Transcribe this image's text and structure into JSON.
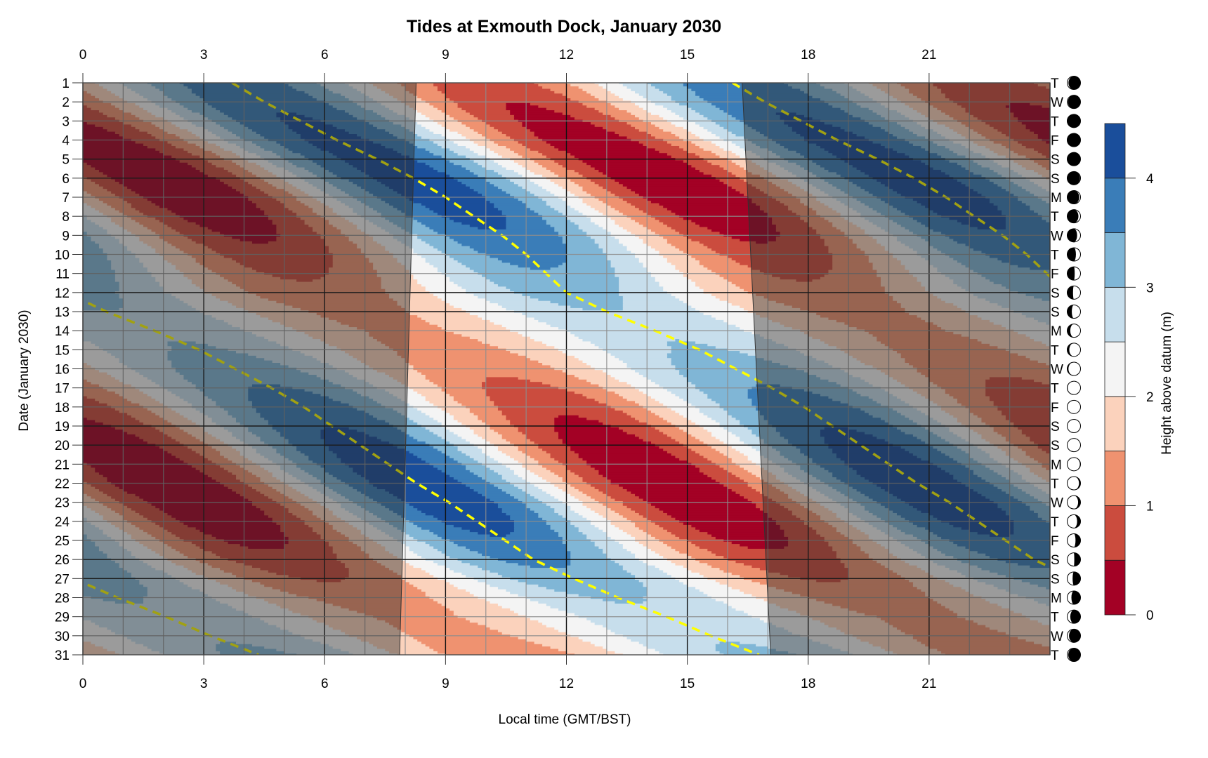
{
  "chart_data": {
    "type": "heatmap",
    "subtype": "filled-contour",
    "title": "Tides at Exmouth Dock, January 2030",
    "xlabel": "Local time (GMT/BST)",
    "ylabel": "Date (January 2030)",
    "x_range": [
      0,
      24
    ],
    "x_ticks": [
      0,
      3,
      6,
      9,
      12,
      15,
      18,
      21
    ],
    "y_range": [
      1,
      31
    ],
    "grid": true,
    "weekend_days": [
      5,
      6,
      12,
      13,
      19,
      20,
      26,
      27
    ],
    "tidal_period_h": 12.42,
    "colorbar": {
      "label": "Height above datum (m)",
      "levels": [
        0,
        0.5,
        1,
        1.5,
        2,
        2.5,
        3,
        3.5,
        4,
        4.5
      ],
      "ticks": [
        0,
        1,
        2,
        3,
        4
      ],
      "colors": [
        "#a30125",
        "#cb4c3e",
        "#ef9270",
        "#fbd2bc",
        "#f4f4f4",
        "#c7deec",
        "#80b6d6",
        "#3a7db8",
        "#1a4e9b"
      ],
      "placement": "right"
    },
    "daylight": {
      "days": [
        1,
        31
      ],
      "sunrise_h": [
        8.27,
        7.86
      ],
      "sunset_h": [
        16.36,
        17.07
      ],
      "night_shade": "rgba(40,40,40,0.44)"
    },
    "high_water_line_color": "#ffff00",
    "days": [
      {
        "day": 1,
        "weekday": "T",
        "moon_phase": 0.9,
        "high_water_time_h": 3.7,
        "high_water_m": 3.8,
        "low_water_m": 0.7
      },
      {
        "day": 2,
        "weekday": "W",
        "moon_phase": 0.93,
        "high_water_time_h": 4.5,
        "high_water_m": 3.95,
        "low_water_m": 0.5
      },
      {
        "day": 3,
        "weekday": "T",
        "moon_phase": 0.96,
        "high_water_time_h": 5.4,
        "high_water_m": 4.05,
        "low_water_m": 0.35
      },
      {
        "day": 4,
        "weekday": "F",
        "moon_phase": 0.0,
        "high_water_time_h": 6.3,
        "high_water_m": 4.15,
        "low_water_m": 0.2
      },
      {
        "day": 5,
        "weekday": "S",
        "moon_phase": 0.03,
        "high_water_time_h": 7.3,
        "high_water_m": 4.22,
        "low_water_m": 0.12
      },
      {
        "day": 6,
        "weekday": "S",
        "moon_phase": 0.06,
        "high_water_time_h": 8.2,
        "high_water_m": 4.27,
        "low_water_m": 0.08
      },
      {
        "day": 7,
        "weekday": "M",
        "moon_phase": 0.1,
        "high_water_time_h": 9.0,
        "high_water_m": 4.25,
        "low_water_m": 0.08
      },
      {
        "day": 8,
        "weekday": "T",
        "moon_phase": 0.13,
        "high_water_time_h": 9.7,
        "high_water_m": 4.15,
        "low_water_m": 0.2
      },
      {
        "day": 9,
        "weekday": "W",
        "moon_phase": 0.17,
        "high_water_time_h": 10.4,
        "high_water_m": 3.95,
        "low_water_m": 0.4
      },
      {
        "day": 10,
        "weekday": "T",
        "moon_phase": 0.2,
        "high_water_time_h": 11.0,
        "high_water_m": 3.7,
        "low_water_m": 0.65
      },
      {
        "day": 11,
        "weekday": "F",
        "moon_phase": 0.23,
        "high_water_time_h": 11.5,
        "high_water_m": 3.45,
        "low_water_m": 0.9
      },
      {
        "day": 12,
        "weekday": "S",
        "moon_phase": 0.27,
        "high_water_time_h": 12.0,
        "high_water_m": 3.2,
        "low_water_m": 1.15
      },
      {
        "day": 13,
        "weekday": "S",
        "moon_phase": 0.3,
        "high_water_time_h": 0.58,
        "high_water_m": 3.0,
        "low_water_m": 1.35
      },
      {
        "day": 14,
        "weekday": "M",
        "moon_phase": 0.34,
        "high_water_time_h": 1.78,
        "high_water_m": 2.95,
        "low_water_m": 1.4
      },
      {
        "day": 15,
        "weekday": "T",
        "moon_phase": 0.37,
        "high_water_time_h": 2.88,
        "high_water_m": 3.05,
        "low_water_m": 1.3
      },
      {
        "day": 16,
        "weekday": "W",
        "moon_phase": 0.4,
        "high_water_time_h": 3.78,
        "high_water_m": 3.3,
        "low_water_m": 1.1
      },
      {
        "day": 17,
        "weekday": "T",
        "moon_phase": 0.44,
        "high_water_time_h": 4.68,
        "high_water_m": 3.55,
        "low_water_m": 0.85
      },
      {
        "day": 18,
        "weekday": "F",
        "moon_phase": 0.47,
        "high_water_time_h": 5.48,
        "high_water_m": 3.8,
        "low_water_m": 0.6
      },
      {
        "day": 19,
        "weekday": "S",
        "moon_phase": 0.5,
        "high_water_time_h": 6.18,
        "high_water_m": 4.0,
        "low_water_m": 0.38
      },
      {
        "day": 20,
        "weekday": "S",
        "moon_phase": 0.54,
        "high_water_time_h": 6.88,
        "high_water_m": 4.18,
        "low_water_m": 0.2
      },
      {
        "day": 21,
        "weekday": "M",
        "moon_phase": 0.57,
        "high_water_time_h": 7.58,
        "high_water_m": 4.3,
        "low_water_m": 0.08
      },
      {
        "day": 22,
        "weekday": "T",
        "moon_phase": 0.61,
        "high_water_time_h": 8.28,
        "high_water_m": 4.35,
        "low_water_m": 0.02
      },
      {
        "day": 23,
        "weekday": "W",
        "moon_phase": 0.64,
        "high_water_time_h": 9.08,
        "high_water_m": 4.33,
        "low_water_m": 0.05
      },
      {
        "day": 24,
        "weekday": "T",
        "moon_phase": 0.67,
        "high_water_time_h": 9.78,
        "high_water_m": 4.2,
        "low_water_m": 0.15
      },
      {
        "day": 25,
        "weekday": "F",
        "moon_phase": 0.71,
        "high_water_time_h": 10.48,
        "high_water_m": 3.95,
        "low_water_m": 0.35
      },
      {
        "day": 26,
        "weekday": "S",
        "moon_phase": 0.74,
        "high_water_time_h": 11.18,
        "high_water_m": 3.65,
        "low_water_m": 0.65
      },
      {
        "day": 27,
        "weekday": "S",
        "moon_phase": 0.78,
        "high_water_time_h": 12.18,
        "high_water_m": 3.35,
        "low_water_m": 0.95
      },
      {
        "day": 28,
        "weekday": "M",
        "moon_phase": 0.81,
        "high_water_time_h": 0.86,
        "high_water_m": 3.05,
        "low_water_m": 1.25
      },
      {
        "day": 29,
        "weekday": "T",
        "moon_phase": 0.84,
        "high_water_time_h": 2.06,
        "high_water_m": 2.9,
        "low_water_m": 1.4
      },
      {
        "day": 30,
        "weekday": "W",
        "moon_phase": 0.88,
        "high_water_time_h": 3.16,
        "high_water_m": 2.95,
        "low_water_m": 1.35
      },
      {
        "day": 31,
        "weekday": "T",
        "moon_phase": 0.91,
        "high_water_time_h": 4.36,
        "high_water_m": 3.1,
        "low_water_m": 1.2
      }
    ]
  }
}
